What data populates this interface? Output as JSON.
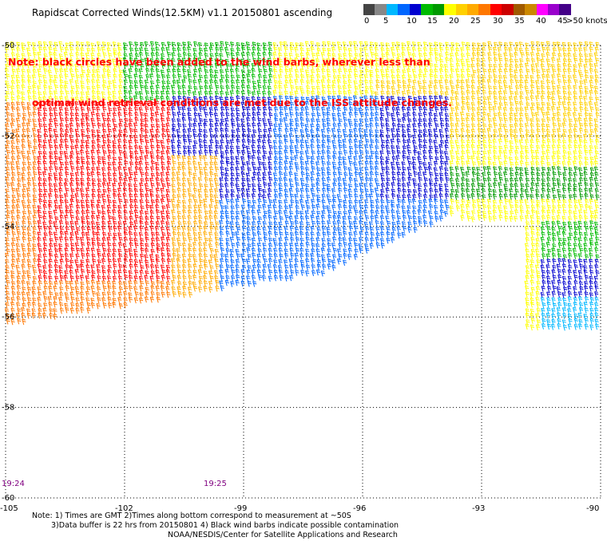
{
  "title": "Rapidscat Corrected Winds(12.5KM) v1.1 20150801 ascending",
  "note": {
    "line1": "Note: black circles have been added to the wind barbs, wherever less than",
    "line2": "optimal wind retrieval conditions are met due to the ISS attitude changes."
  },
  "colorbar": {
    "colors": [
      "#444444",
      "#888888",
      "#00b8ff",
      "#0066ff",
      "#0000d0",
      "#00bb00",
      "#009900",
      "#ffff00",
      "#ffd000",
      "#ffaa00",
      "#ff7700",
      "#ff0000",
      "#cc0000",
      "#a05a00",
      "#cc8800",
      "#ff00ff",
      "#9900cc",
      "#440088"
    ],
    "labels": [
      "0",
      "5",
      "10",
      "15",
      "20",
      "25",
      "30",
      "35",
      "40",
      "45",
      ">50 knots"
    ]
  },
  "axes": {
    "lat_labels": [
      "-50",
      "-52",
      "-54",
      "-56",
      "-58",
      "-60"
    ],
    "lat_values": [
      -50,
      -52,
      -54,
      -56,
      -58,
      -60
    ],
    "lon_labels": [
      "-105",
      "-102",
      "-99",
      "-96",
      "-93",
      "-90"
    ],
    "lon_values": [
      -105,
      -102,
      -99,
      -96,
      -93,
      -90
    ]
  },
  "time_labels": [
    {
      "text": "19:24",
      "lon": -105
    },
    {
      "text": "19:25",
      "lon": -99
    }
  ],
  "footer": {
    "line1": "Note: 1) Times are GMT 2)Times along bottom correspond to measurement at ~50S",
    "line2": "3)Data buffer is 22 hrs from 20150801 4) Black wind barbs indicate possible contamination",
    "line3": "NOAA/NESDIS/Center for Satellite Applications and Research"
  }
}
